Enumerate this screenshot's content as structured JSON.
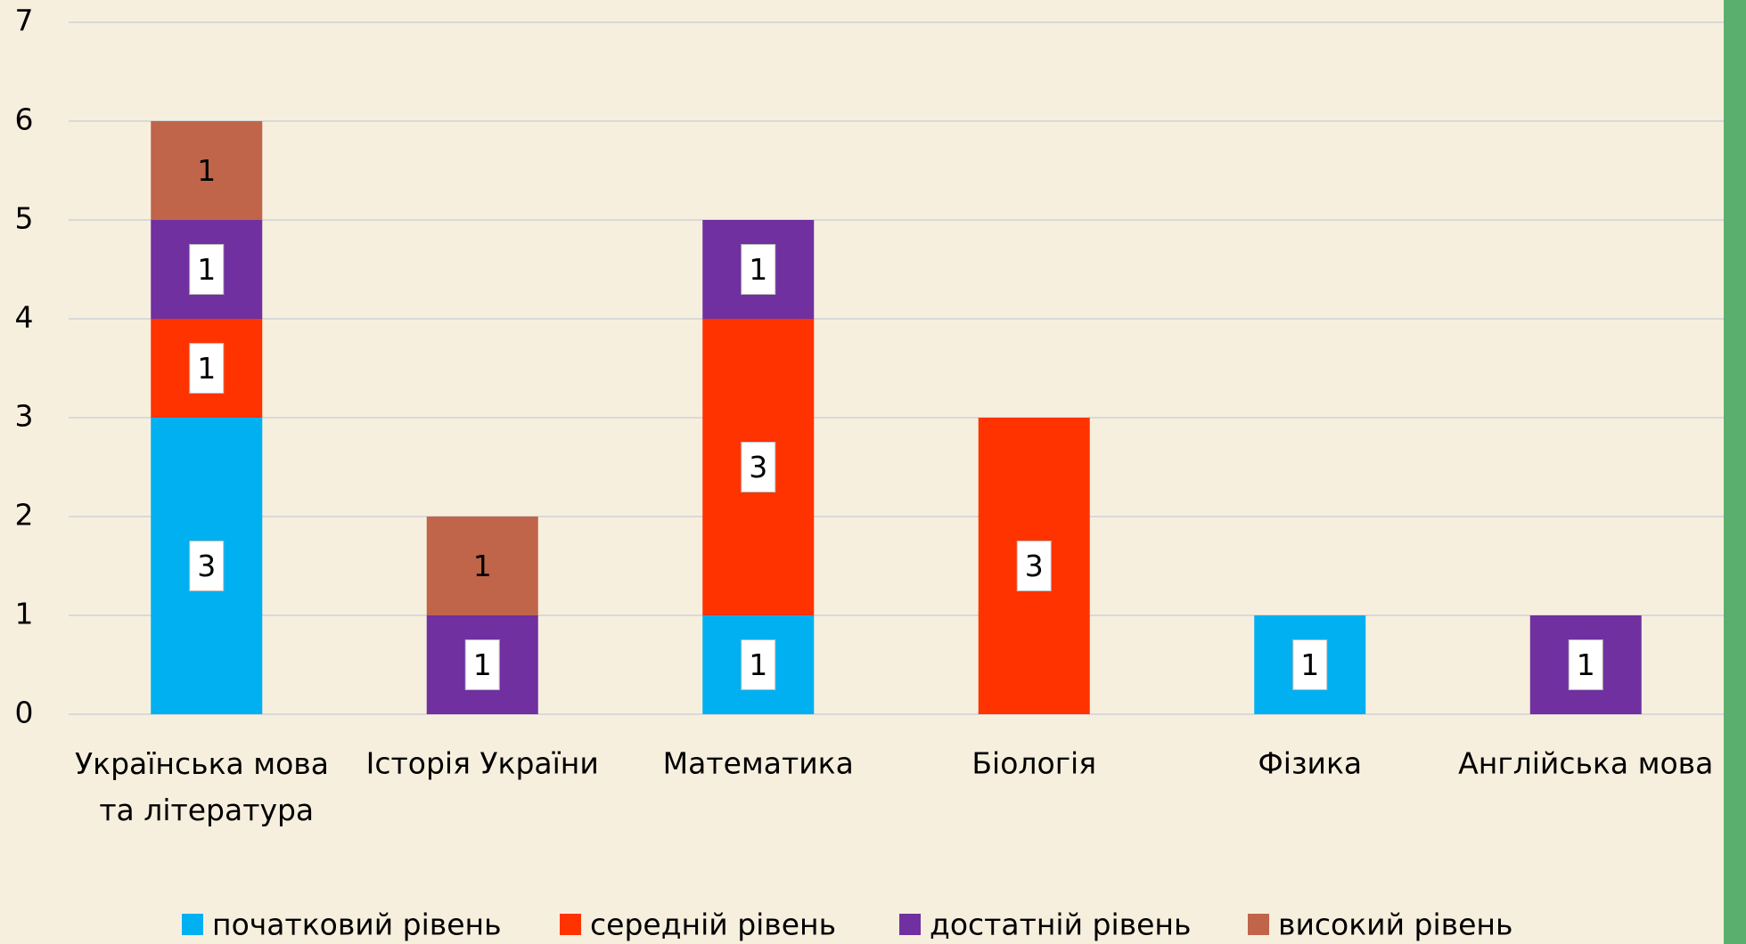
{
  "chart_data": {
    "type": "stacked_bar",
    "categories": [
      "Українська мова та література",
      "Історія України",
      "Математика",
      "Біологія",
      "Фізика",
      "Англійська мова"
    ],
    "series": [
      {
        "name": "початковий рівень",
        "color": "#00b0f0",
        "values": [
          3,
          null,
          1,
          null,
          1,
          null
        ]
      },
      {
        "name": "середній рівень",
        "color": "#ff3300",
        "values": [
          1,
          null,
          3,
          3,
          null,
          null
        ]
      },
      {
        "name": "достатній рівень",
        "color": "#7030a0",
        "values": [
          1,
          1,
          1,
          null,
          null,
          1
        ]
      },
      {
        "name": "високий рівень",
        "color": "#c0654a",
        "values": [
          1,
          1,
          null,
          null,
          null,
          null
        ]
      }
    ],
    "ylim": [
      0,
      7
    ],
    "yticks": [
      0,
      1,
      2,
      3,
      4,
      5,
      6,
      7
    ],
    "grid": true,
    "legend": "bottom"
  }
}
